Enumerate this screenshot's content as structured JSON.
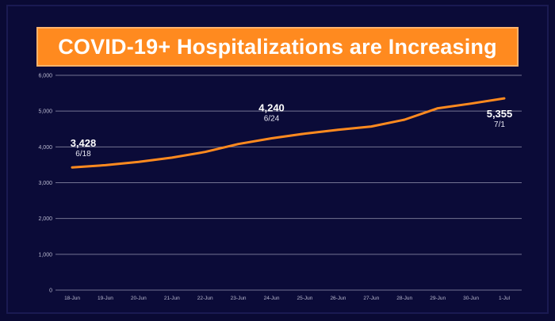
{
  "title": "COVID-19+ Hospitalizations are Increasing",
  "colors": {
    "background": "#0b0b38",
    "banner": "#ff8a1f",
    "line": "#ff8a1f"
  },
  "chart_data": {
    "type": "line",
    "title": "COVID-19+ Hospitalizations are Increasing",
    "xlabel": "",
    "ylabel": "",
    "ylim": [
      0,
      6000
    ],
    "yticks": [
      "0",
      "1,000",
      "2,000",
      "3,000",
      "4,000",
      "5,000",
      "6,000"
    ],
    "categories": [
      "18-Jun",
      "19-Jun",
      "20-Jun",
      "21-Jun",
      "22-Jun",
      "23-Jun",
      "24-Jun",
      "25-Jun",
      "26-Jun",
      "27-Jun",
      "28-Jun",
      "29-Jun",
      "30-Jun",
      "1-Jul"
    ],
    "series": [
      {
        "values": [
          3428,
          3490,
          3580,
          3700,
          3860,
          4080,
          4240,
          4370,
          4480,
          4570,
          4760,
          5080,
          5210,
          5355
        ]
      }
    ],
    "grid": true,
    "annotations": [
      {
        "index": 0,
        "value": "3,428",
        "date": "6/18"
      },
      {
        "index": 6,
        "value": "4,240",
        "date": "6/24"
      },
      {
        "index": 13,
        "value": "5,355",
        "date": "7/1"
      }
    ]
  }
}
